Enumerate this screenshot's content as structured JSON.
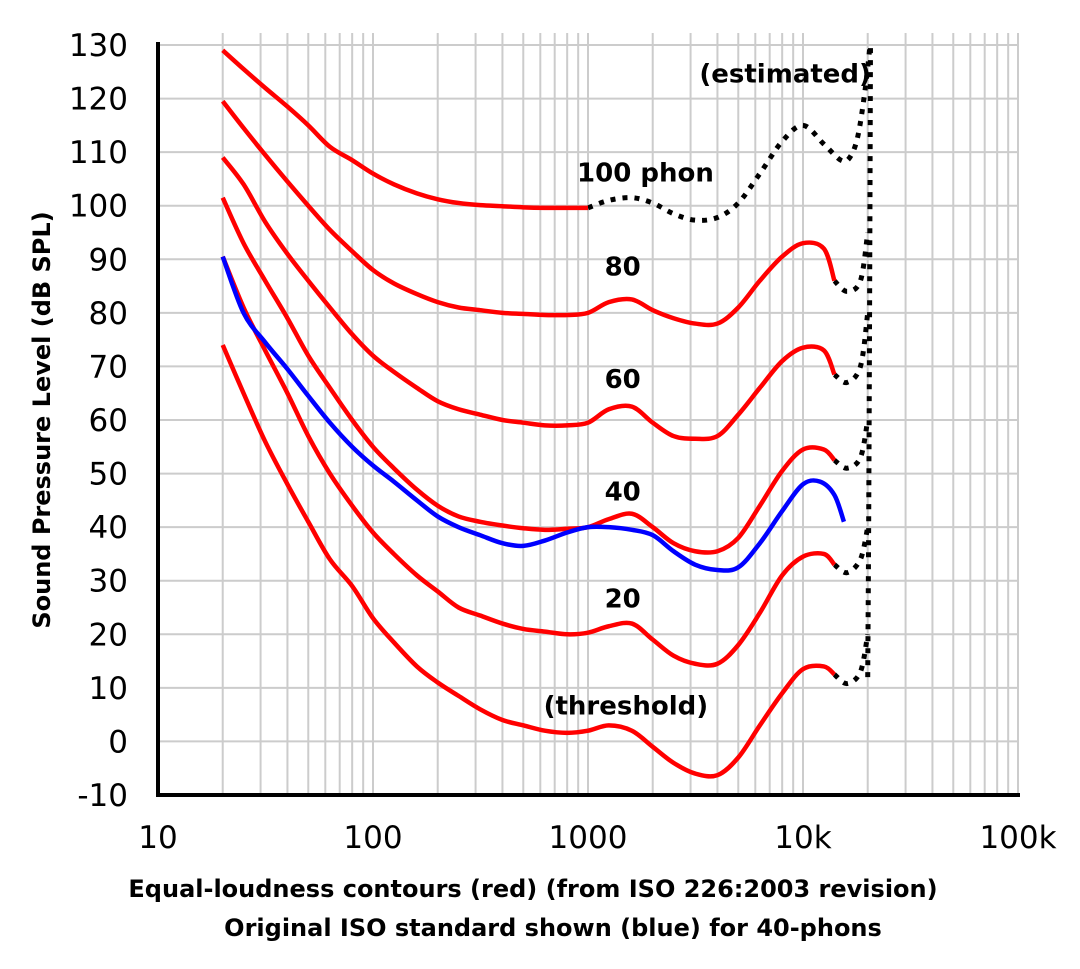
{
  "chart_data": {
    "type": "line",
    "x_scale": "log",
    "xlim": [
      10,
      100000
    ],
    "ylim": [
      -10,
      130
    ],
    "grid": true,
    "ylabel": "Sound Pressure Level (dB SPL)",
    "xlabel_lines": [
      "Equal-loudness contours (red) (from ISO 226:2003 revision)",
      "Original ISO standard shown (blue) for 40-phons"
    ],
    "x_tick_labels": [
      {
        "value": 10,
        "label": "10"
      },
      {
        "value": 100,
        "label": "100"
      },
      {
        "value": 1000,
        "label": "1000"
      },
      {
        "value": 10000,
        "label": "10k"
      },
      {
        "value": 100000,
        "label": "100k"
      }
    ],
    "y_ticks": [
      130,
      120,
      110,
      100,
      90,
      80,
      70,
      60,
      50,
      40,
      30,
      20,
      10,
      0,
      -10
    ],
    "colors": {
      "iso2003": "#ff0000",
      "original_40": "#0000ff",
      "estimated": "#000000",
      "grid": "#cccccc"
    },
    "series": [
      {
        "label": "(threshold)",
        "label_at": [
          1500,
          5
        ],
        "style": "solid",
        "color": "#ff0000",
        "points": [
          [
            20,
            74
          ],
          [
            25,
            65
          ],
          [
            31.5,
            56
          ],
          [
            40,
            48
          ],
          [
            50,
            41
          ],
          [
            63,
            34
          ],
          [
            80,
            29
          ],
          [
            100,
            23
          ],
          [
            125,
            18.5
          ],
          [
            160,
            14
          ],
          [
            200,
            11
          ],
          [
            250,
            8.5
          ],
          [
            315,
            6
          ],
          [
            400,
            4
          ],
          [
            500,
            3
          ],
          [
            630,
            2
          ],
          [
            800,
            1.6
          ],
          [
            1000,
            2
          ],
          [
            1250,
            3
          ],
          [
            1600,
            2
          ],
          [
            2000,
            -1
          ],
          [
            2500,
            -4
          ],
          [
            3150,
            -6
          ],
          [
            4000,
            -6.3
          ],
          [
            5000,
            -3
          ],
          [
            6300,
            3
          ],
          [
            8000,
            9
          ],
          [
            10000,
            13.5
          ],
          [
            12500,
            14
          ],
          [
            14000,
            12.5
          ]
        ],
        "estimated": [
          [
            14000,
            12.5
          ],
          [
            16000,
            10.8
          ],
          [
            18500,
            13
          ],
          [
            20000,
            20
          ]
        ]
      },
      {
        "label": "20",
        "label_at": [
          1450,
          25
        ],
        "style": "solid",
        "color": "#ff0000",
        "points": [
          [
            20,
            90.5
          ],
          [
            25,
            81
          ],
          [
            31.5,
            73
          ],
          [
            40,
            65
          ],
          [
            50,
            57
          ],
          [
            63,
            50
          ],
          [
            80,
            44
          ],
          [
            100,
            39
          ],
          [
            125,
            35
          ],
          [
            160,
            31
          ],
          [
            200,
            28
          ],
          [
            250,
            25
          ],
          [
            315,
            23.5
          ],
          [
            400,
            22
          ],
          [
            500,
            21
          ],
          [
            630,
            20.5
          ],
          [
            800,
            20
          ],
          [
            1000,
            20.3
          ],
          [
            1250,
            21.5
          ],
          [
            1600,
            22
          ],
          [
            2000,
            19
          ],
          [
            2500,
            16
          ],
          [
            3150,
            14.5
          ],
          [
            4000,
            14.5
          ],
          [
            5000,
            18
          ],
          [
            6300,
            24
          ],
          [
            8000,
            31
          ],
          [
            10000,
            34.5
          ],
          [
            12500,
            35
          ],
          [
            14000,
            33
          ]
        ],
        "estimated": [
          [
            14000,
            33
          ],
          [
            16000,
            31.5
          ],
          [
            18500,
            34
          ],
          [
            20000,
            40
          ]
        ]
      },
      {
        "label": "40",
        "label_at": [
          1450,
          45
        ],
        "style": "solid",
        "color": "#ff0000",
        "points": [
          [
            20,
            101.5
          ],
          [
            25,
            93
          ],
          [
            31.5,
            86
          ],
          [
            40,
            79
          ],
          [
            50,
            72
          ],
          [
            63,
            66
          ],
          [
            80,
            60
          ],
          [
            100,
            55
          ],
          [
            125,
            51
          ],
          [
            160,
            47
          ],
          [
            200,
            44
          ],
          [
            250,
            42
          ],
          [
            315,
            41
          ],
          [
            400,
            40.3
          ],
          [
            500,
            39.8
          ],
          [
            630,
            39.5
          ],
          [
            800,
            39.7
          ],
          [
            1000,
            40
          ],
          [
            1250,
            41.5
          ],
          [
            1600,
            42.5
          ],
          [
            2000,
            40
          ],
          [
            2500,
            37
          ],
          [
            3150,
            35.5
          ],
          [
            4000,
            35.5
          ],
          [
            5000,
            38
          ],
          [
            6300,
            44
          ],
          [
            8000,
            50.5
          ],
          [
            10000,
            54.5
          ],
          [
            12500,
            54.5
          ],
          [
            14000,
            52.5
          ]
        ],
        "estimated": [
          [
            14000,
            52.5
          ],
          [
            16000,
            51
          ],
          [
            18500,
            53
          ],
          [
            20000,
            60
          ]
        ]
      },
      {
        "label": "60",
        "label_at": [
          1450,
          66
        ],
        "style": "solid",
        "color": "#ff0000",
        "points": [
          [
            20,
            109
          ],
          [
            25,
            104
          ],
          [
            31.5,
            97
          ],
          [
            40,
            91
          ],
          [
            50,
            86
          ],
          [
            63,
            81
          ],
          [
            80,
            76
          ],
          [
            100,
            72
          ],
          [
            125,
            69
          ],
          [
            160,
            66
          ],
          [
            200,
            63.5
          ],
          [
            250,
            62
          ],
          [
            315,
            61
          ],
          [
            400,
            60
          ],
          [
            500,
            59.5
          ],
          [
            630,
            59
          ],
          [
            800,
            59
          ],
          [
            1000,
            59.5
          ],
          [
            1250,
            62
          ],
          [
            1600,
            62.5
          ],
          [
            2000,
            59.5
          ],
          [
            2500,
            57
          ],
          [
            3150,
            56.5
          ],
          [
            4000,
            57
          ],
          [
            5000,
            61
          ],
          [
            6300,
            66
          ],
          [
            8000,
            71
          ],
          [
            10000,
            73.5
          ],
          [
            12500,
            73
          ],
          [
            14000,
            68.5
          ]
        ],
        "estimated": [
          [
            14000,
            68.5
          ],
          [
            16000,
            67
          ],
          [
            18500,
            70
          ],
          [
            20000,
            80
          ]
        ]
      },
      {
        "label": "80",
        "label_at": [
          1450,
          87
        ],
        "style": "solid",
        "color": "#ff0000",
        "points": [
          [
            20,
            119.5
          ],
          [
            25,
            114.5
          ],
          [
            31.5,
            109.5
          ],
          [
            40,
            104.5
          ],
          [
            50,
            100
          ],
          [
            63,
            95.5
          ],
          [
            80,
            91.5
          ],
          [
            100,
            88
          ],
          [
            125,
            85.5
          ],
          [
            160,
            83.5
          ],
          [
            200,
            82
          ],
          [
            250,
            81
          ],
          [
            315,
            80.5
          ],
          [
            400,
            80
          ],
          [
            500,
            79.8
          ],
          [
            630,
            79.6
          ],
          [
            800,
            79.6
          ],
          [
            1000,
            80
          ],
          [
            1250,
            82
          ],
          [
            1600,
            82.5
          ],
          [
            2000,
            80.5
          ],
          [
            2500,
            79
          ],
          [
            3150,
            78
          ],
          [
            4000,
            78
          ],
          [
            5000,
            81
          ],
          [
            6300,
            86
          ],
          [
            8000,
            90.5
          ],
          [
            10000,
            93
          ],
          [
            12500,
            92
          ],
          [
            14000,
            86
          ]
        ],
        "estimated": [
          [
            14000,
            86
          ],
          [
            16000,
            84
          ],
          [
            18500,
            86
          ],
          [
            20000,
            95
          ]
        ]
      },
      {
        "label": "100 phon",
        "label_at": [
          1850,
          104.5
        ],
        "style": "solid",
        "color": "#ff0000",
        "points": [
          [
            20,
            129
          ],
          [
            25,
            125.5
          ],
          [
            31.5,
            122
          ],
          [
            40,
            118.5
          ],
          [
            50,
            115
          ],
          [
            63,
            111
          ],
          [
            80,
            108.5
          ],
          [
            100,
            106
          ],
          [
            125,
            104
          ],
          [
            160,
            102.3
          ],
          [
            200,
            101.2
          ],
          [
            250,
            100.5
          ],
          [
            315,
            100.1
          ],
          [
            400,
            99.9
          ],
          [
            500,
            99.7
          ],
          [
            630,
            99.6
          ],
          [
            800,
            99.6
          ],
          [
            1000,
            99.6
          ]
        ],
        "estimated": [
          [
            1000,
            99.6
          ],
          [
            1250,
            101
          ],
          [
            1600,
            101.5
          ],
          [
            2000,
            100.5
          ],
          [
            2500,
            98.5
          ],
          [
            3150,
            97.3
          ],
          [
            4000,
            97.8
          ],
          [
            5000,
            100.5
          ],
          [
            6300,
            106
          ],
          [
            8000,
            112
          ],
          [
            10000,
            115
          ],
          [
            12500,
            111.5
          ],
          [
            15000,
            108.5
          ],
          [
            16500,
            109
          ],
          [
            18000,
            113
          ],
          [
            19500,
            122
          ],
          [
            20500,
            130
          ]
        ]
      },
      {
        "label": "",
        "style": "solid",
        "color": "#0000ff",
        "points": [
          [
            20,
            90.5
          ],
          [
            25,
            80
          ],
          [
            31.5,
            74.5
          ],
          [
            40,
            69.5
          ],
          [
            50,
            64.5
          ],
          [
            63,
            59.5
          ],
          [
            80,
            55
          ],
          [
            100,
            51.5
          ],
          [
            125,
            48.5
          ],
          [
            160,
            45
          ],
          [
            200,
            42
          ],
          [
            250,
            40
          ],
          [
            315,
            38.5
          ],
          [
            400,
            37
          ],
          [
            500,
            36.5
          ],
          [
            630,
            37.5
          ],
          [
            800,
            39
          ],
          [
            1000,
            40
          ],
          [
            1250,
            40
          ],
          [
            1600,
            39.5
          ],
          [
            2000,
            38.5
          ],
          [
            2500,
            35.5
          ],
          [
            3150,
            33
          ],
          [
            4000,
            32
          ],
          [
            5000,
            32.5
          ],
          [
            6300,
            37
          ],
          [
            8000,
            43
          ],
          [
            10000,
            48
          ],
          [
            12000,
            48.5
          ],
          [
            14000,
            46
          ],
          [
            15500,
            41
          ]
        ]
      }
    ],
    "estimated_label": "(estimated)",
    "estimated_label_at": [
      9000,
      123
    ],
    "estimated_limit": [
      [
        20000,
        12
      ],
      [
        20200,
        40
      ],
      [
        20400,
        80
      ],
      [
        20600,
        130
      ]
    ]
  }
}
